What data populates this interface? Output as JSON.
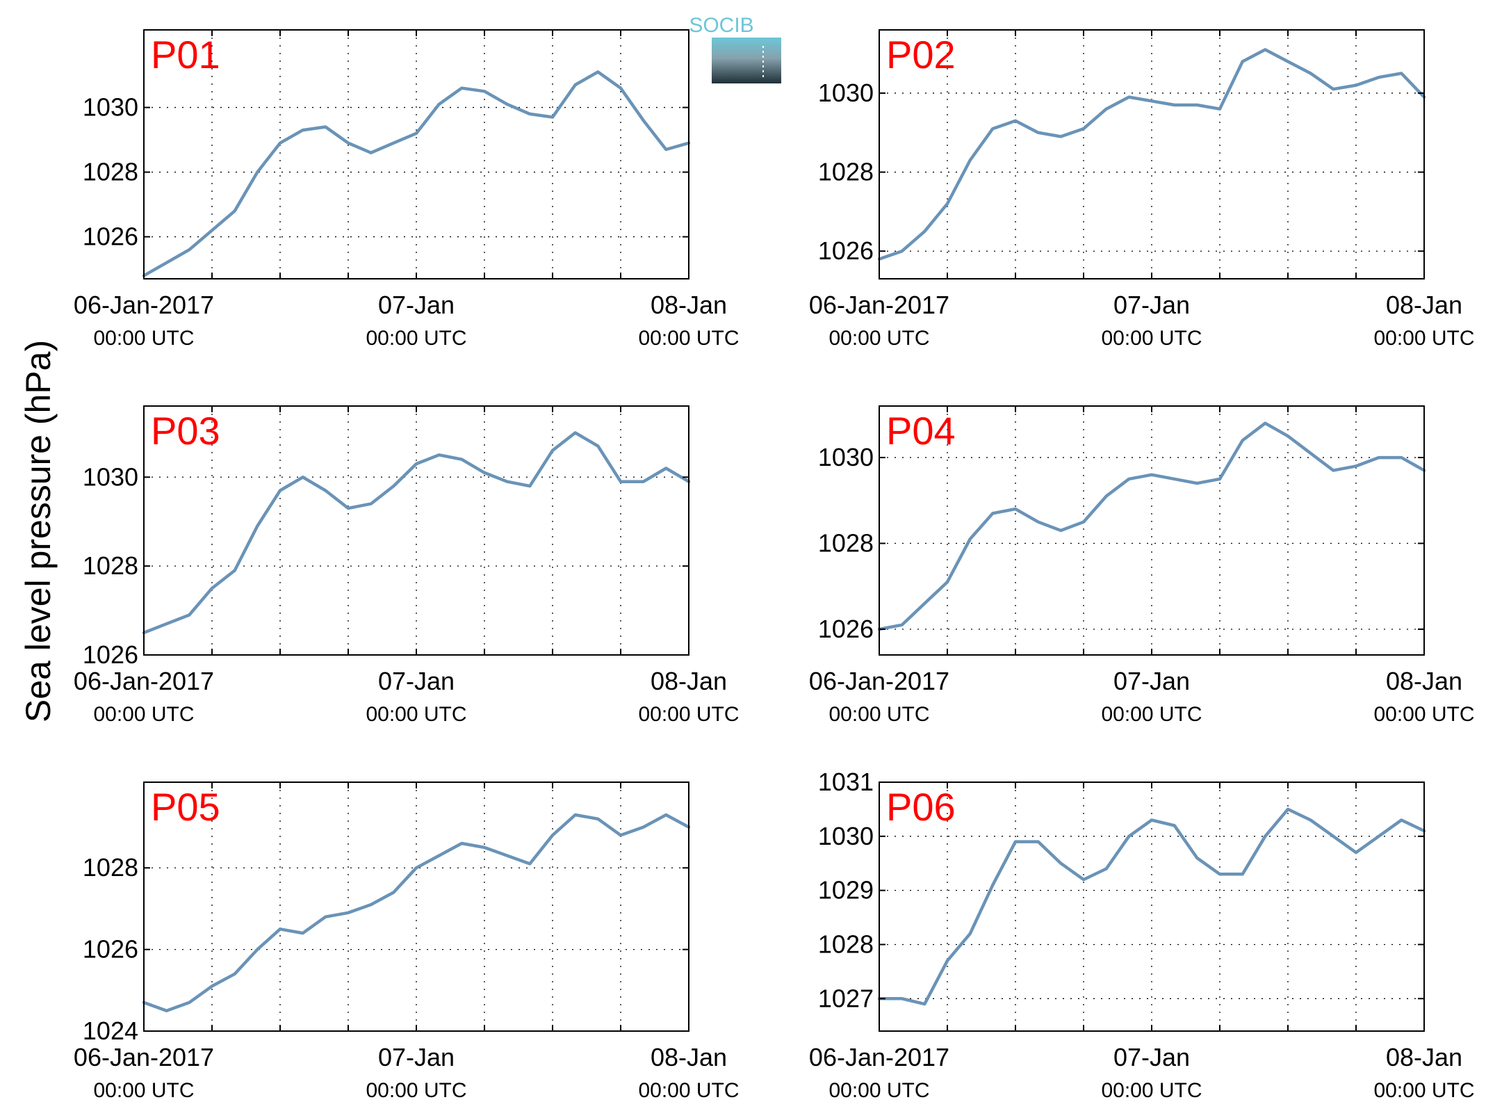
{
  "figure": {
    "ylabel": "Sea level pressure (hPa)",
    "logo_text": "SOCIB",
    "colors": {
      "series_line": "#6a93b7",
      "panel_label": "#ff0000",
      "axes": "#000000",
      "grid": "#000000",
      "logo_top": "#6cc6d8",
      "logo_bottom": "#1e3038"
    }
  },
  "chart_data": [
    {
      "type": "line",
      "panel_label": "P01",
      "xlim": [
        "06-Jan-2017 00:00",
        "08-Jan-2017 00:00"
      ],
      "xtick_labels": [
        {
          "date": "06-Jan-2017",
          "time": "00:00 UTC"
        },
        {
          "date": "07-Jan",
          "time": "00:00 UTC"
        },
        {
          "date": "08-Jan",
          "time": "00:00 UTC"
        }
      ],
      "ylim": [
        1024.7,
        1032.4
      ],
      "yticks": [
        1026,
        1028,
        1030
      ],
      "grid": true,
      "series": [
        {
          "x_hours": [
            0,
            2,
            4,
            6,
            8,
            10,
            12,
            14,
            16,
            18,
            20,
            22,
            24,
            26,
            28,
            30,
            32,
            34,
            36,
            38,
            40,
            42,
            44,
            46,
            48
          ],
          "values": [
            1024.8,
            1025.2,
            1025.6,
            1026.2,
            1026.8,
            1028.0,
            1028.9,
            1029.3,
            1029.4,
            1028.9,
            1028.6,
            1028.9,
            1029.2,
            1030.1,
            1030.6,
            1030.5,
            1030.1,
            1029.8,
            1029.7,
            1030.7,
            1031.1,
            1030.6,
            1029.6,
            1028.7,
            1028.9
          ],
          "values_tail_note": null
        }
      ]
    },
    {
      "type": "line",
      "panel_label": "P02",
      "xlim": [
        "06-Jan-2017 00:00",
        "08-Jan-2017 00:00"
      ],
      "xtick_labels": [
        {
          "date": "06-Jan-2017",
          "time": "00:00 UTC"
        },
        {
          "date": "07-Jan",
          "time": "00:00 UTC"
        },
        {
          "date": "08-Jan",
          "time": "00:00 UTC"
        }
      ],
      "ylim": [
        1025.3,
        1031.6
      ],
      "yticks": [
        1026,
        1028,
        1030
      ],
      "grid": true,
      "series": [
        {
          "x_hours": [
            0,
            2,
            4,
            6,
            8,
            10,
            12,
            14,
            16,
            18,
            20,
            22,
            24,
            26,
            28,
            30,
            32,
            34,
            36,
            38,
            40,
            42,
            44,
            46,
            48
          ],
          "values": [
            1025.8,
            1026.0,
            1026.5,
            1027.2,
            1028.3,
            1029.1,
            1029.3,
            1029.0,
            1028.9,
            1029.1,
            1029.6,
            1029.9,
            1029.8,
            1029.7,
            1029.7,
            1029.6,
            1030.8,
            1031.1,
            1030.8,
            1030.5,
            1030.1,
            1030.2,
            1030.4,
            1030.5,
            1029.9
          ]
        }
      ]
    },
    {
      "type": "line",
      "panel_label": "P03",
      "xlim": [
        "06-Jan-2017 00:00",
        "08-Jan-2017 00:00"
      ],
      "xtick_labels": [
        {
          "date": "06-Jan-2017",
          "time": "00:00 UTC"
        },
        {
          "date": "07-Jan",
          "time": "00:00 UTC"
        },
        {
          "date": "08-Jan",
          "time": "00:00 UTC"
        }
      ],
      "ylim": [
        1026.0,
        1031.6
      ],
      "yticks": [
        1026,
        1028,
        1030
      ],
      "grid": true,
      "series": [
        {
          "x_hours": [
            0,
            2,
            4,
            6,
            8,
            10,
            12,
            14,
            16,
            18,
            20,
            22,
            24,
            26,
            28,
            30,
            32,
            34,
            36,
            38,
            40,
            42,
            44,
            46,
            48
          ],
          "values": [
            1026.5,
            1026.7,
            1026.9,
            1027.5,
            1027.9,
            1028.9,
            1029.7,
            1030.0,
            1029.7,
            1029.3,
            1029.4,
            1029.8,
            1030.3,
            1030.5,
            1030.4,
            1030.1,
            1029.9,
            1029.8,
            1030.6,
            1031.0,
            1030.7,
            1029.9,
            1029.9,
            1030.2,
            1029.9
          ]
        }
      ]
    },
    {
      "type": "line",
      "panel_label": "P04",
      "xlim": [
        "06-Jan-2017 00:00",
        "08-Jan-2017 00:00"
      ],
      "xtick_labels": [
        {
          "date": "06-Jan-2017",
          "time": "00:00 UTC"
        },
        {
          "date": "07-Jan",
          "time": "00:00 UTC"
        },
        {
          "date": "08-Jan",
          "time": "00:00 UTC"
        }
      ],
      "ylim": [
        1025.4,
        1031.2
      ],
      "yticks": [
        1026,
        1028,
        1030
      ],
      "grid": true,
      "series": [
        {
          "x_hours": [
            0,
            2,
            4,
            6,
            8,
            10,
            12,
            14,
            16,
            18,
            20,
            22,
            24,
            26,
            28,
            30,
            32,
            34,
            36,
            38,
            40,
            42,
            44,
            46,
            48
          ],
          "values": [
            1026.0,
            1026.1,
            1026.6,
            1027.1,
            1028.1,
            1028.7,
            1028.8,
            1028.5,
            1028.3,
            1028.5,
            1029.1,
            1029.5,
            1029.6,
            1029.5,
            1029.4,
            1029.5,
            1030.4,
            1030.8,
            1030.5,
            1030.1,
            1029.7,
            1029.8,
            1030.0,
            1030.0,
            1029.7
          ]
        }
      ]
    },
    {
      "type": "line",
      "panel_label": "P05",
      "xlim": [
        "06-Jan-2017 00:00",
        "08-Jan-2017 00:00"
      ],
      "xtick_labels": [
        {
          "date": "06-Jan-2017",
          "time": "00:00 UTC"
        },
        {
          "date": "07-Jan",
          "time": "00:00 UTC"
        },
        {
          "date": "08-Jan",
          "time": "00:00 UTC"
        }
      ],
      "ylim": [
        1024.0,
        1030.1
      ],
      "yticks": [
        1024,
        1026,
        1028
      ],
      "grid": true,
      "series": [
        {
          "x_hours": [
            0,
            2,
            4,
            6,
            8,
            10,
            12,
            14,
            16,
            18,
            20,
            22,
            24,
            26,
            28,
            30,
            32,
            34,
            36,
            38,
            40,
            42,
            44,
            46,
            48
          ],
          "values": [
            1024.7,
            1024.5,
            1024.7,
            1025.1,
            1025.4,
            1026.0,
            1026.5,
            1026.4,
            1026.8,
            1026.9,
            1027.1,
            1027.4,
            1028.0,
            1028.3,
            1028.6,
            1028.5,
            1028.3,
            1028.1,
            1028.8,
            1029.3,
            1029.2,
            1028.8,
            1029.0,
            1029.3,
            1029.0
          ]
        }
      ]
    },
    {
      "type": "line",
      "panel_label": "P06",
      "xlim": [
        "06-Jan-2017 00:00",
        "08-Jan-2017 00:00"
      ],
      "xtick_labels": [
        {
          "date": "06-Jan-2017",
          "time": "00:00 UTC"
        },
        {
          "date": "07-Jan",
          "time": "00:00 UTC"
        },
        {
          "date": "08-Jan",
          "time": "00:00 UTC"
        }
      ],
      "ylim": [
        1026.4,
        1031.0
      ],
      "yticks": [
        1027,
        1028,
        1029,
        1030,
        1031
      ],
      "grid": true,
      "series": [
        {
          "x_hours": [
            0,
            2,
            4,
            6,
            8,
            10,
            12,
            14,
            16,
            18,
            20,
            22,
            24,
            26,
            28,
            30,
            32,
            34,
            36,
            38,
            40,
            42,
            44,
            46,
            48
          ],
          "values": [
            1027.0,
            1027.0,
            1026.9,
            1027.7,
            1028.2,
            1029.1,
            1029.9,
            1029.9,
            1029.5,
            1029.2,
            1029.4,
            1030.0,
            1030.3,
            1030.2,
            1029.6,
            1029.3,
            1029.3,
            1030.0,
            1030.5,
            1030.3,
            1030.0,
            1029.7,
            1030.0,
            1030.3,
            1030.1
          ]
        }
      ]
    }
  ]
}
